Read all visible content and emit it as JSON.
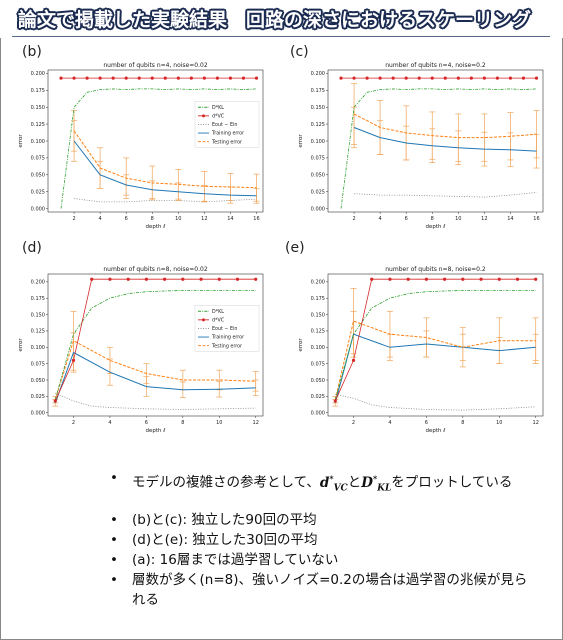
{
  "slide": {
    "title": "論文で掲載した実験結果　回路の深さにおけるスケーリング",
    "bullets": [
      {
        "pre": "モデルの複雑さの参考として、",
        "m1": "d",
        "m1sub": "VC",
        "mid": "と",
        "m2": "D",
        "m2sub": "KL",
        "post": "をプロットしている"
      },
      {
        "text": "(b)と(c): 独立した90回の平均"
      },
      {
        "text": "(d)と(e): 独立した30回の平均"
      },
      {
        "text": "(a): 16層までは過学習していない"
      },
      {
        "text": "層数が多く(n=8)、強いノイズ=0.2の場合は過学習の兆候が見られる"
      }
    ]
  },
  "colors": {
    "dvc": "#d62728",
    "dkl": "#2ca02c",
    "gap": "#888888",
    "train": "#1f77b4",
    "test": "#ff7f0e",
    "errbar": "#f0a45a"
  },
  "legend_labels": {
    "dkl": "D*KL",
    "dvc": "d*VC",
    "gap": "Eout − Ein",
    "train": "Training error",
    "test": "Testing error"
  },
  "chart_data": [
    {
      "panel": "(b)",
      "type": "line",
      "title": "number of qubits n=4, noise=0.02",
      "xlabel": "depth ℓ",
      "ylabel": "error",
      "xlim": [
        0,
        16.5
      ],
      "ylim": [
        -0.005,
        0.205
      ],
      "xticks": [
        2,
        4,
        6,
        8,
        10,
        12,
        14,
        16
      ],
      "yticks": [
        0.0,
        0.025,
        0.05,
        0.075,
        0.1,
        0.125,
        0.15,
        0.175,
        0.2
      ],
      "ytick_labels": [
        "0.000",
        "0.025",
        "0.050",
        "0.075",
        "0.100",
        "0.125",
        "0.150",
        "0.175",
        "0.200"
      ],
      "legend": "right",
      "series": {
        "dvc": {
          "x": [
            1,
            2,
            3,
            4,
            5,
            6,
            7,
            8,
            9,
            10,
            11,
            12,
            13,
            14,
            15,
            16
          ],
          "y": [
            0.193,
            0.193,
            0.193,
            0.193,
            0.193,
            0.193,
            0.193,
            0.193,
            0.193,
            0.193,
            0.193,
            0.193,
            0.193,
            0.193,
            0.193,
            0.193
          ]
        },
        "dkl": {
          "x": [
            1,
            2,
            3,
            4,
            5,
            6,
            7,
            8,
            9,
            10,
            11,
            12,
            13,
            14,
            15,
            16
          ],
          "y": [
            0.0,
            0.15,
            0.172,
            0.176,
            0.177,
            0.176,
            0.177,
            0.177,
            0.176,
            0.177,
            0.176,
            0.177,
            0.176,
            0.177,
            0.176,
            0.177
          ]
        },
        "gap": {
          "x": [
            2,
            4,
            6,
            8,
            10,
            12,
            14,
            16
          ],
          "y": [
            0.015,
            0.01,
            0.01,
            0.012,
            0.012,
            0.01,
            0.012,
            0.014
          ]
        },
        "train": {
          "x": [
            2,
            4,
            6,
            8,
            10,
            12,
            14,
            16
          ],
          "y": [
            0.1,
            0.05,
            0.035,
            0.028,
            0.025,
            0.022,
            0.02,
            0.019
          ],
          "err": [
            0.03,
            0.02,
            0.015,
            0.013,
            0.013,
            0.012,
            0.012,
            0.011
          ]
        },
        "test": {
          "x": [
            2,
            4,
            6,
            8,
            10,
            12,
            14,
            16
          ],
          "y": [
            0.115,
            0.06,
            0.045,
            0.038,
            0.036,
            0.033,
            0.032,
            0.031
          ],
          "err": [
            0.03,
            0.03,
            0.03,
            0.025,
            0.022,
            0.022,
            0.02,
            0.02
          ]
        }
      }
    },
    {
      "panel": "(c)",
      "type": "line",
      "title": "number of qubits n=4, noise=0.2",
      "xlabel": "depth ℓ",
      "ylabel": "error",
      "xlim": [
        0,
        16.5
      ],
      "ylim": [
        -0.005,
        0.205
      ],
      "xticks": [
        2,
        4,
        6,
        8,
        10,
        12,
        14,
        16
      ],
      "yticks": [
        0.0,
        0.025,
        0.05,
        0.075,
        0.1,
        0.125,
        0.15,
        0.175,
        0.2
      ],
      "ytick_labels": [
        "0.000",
        "0.025",
        "0.050",
        "0.075",
        "0.100",
        "0.125",
        "0.150",
        "0.175",
        "0.200"
      ],
      "legend": "none",
      "series": {
        "dvc": {
          "x": [
            1,
            2,
            3,
            4,
            5,
            6,
            7,
            8,
            9,
            10,
            11,
            12,
            13,
            14,
            15,
            16
          ],
          "y": [
            0.193,
            0.193,
            0.193,
            0.193,
            0.193,
            0.193,
            0.193,
            0.193,
            0.193,
            0.193,
            0.193,
            0.193,
            0.193,
            0.193,
            0.193,
            0.193
          ]
        },
        "dkl": {
          "x": [
            1,
            2,
            3,
            4,
            5,
            6,
            7,
            8,
            9,
            10,
            11,
            12,
            13,
            14,
            15,
            16
          ],
          "y": [
            0.0,
            0.15,
            0.172,
            0.176,
            0.177,
            0.176,
            0.177,
            0.177,
            0.176,
            0.177,
            0.176,
            0.177,
            0.176,
            0.177,
            0.176,
            0.177
          ]
        },
        "gap": {
          "x": [
            2,
            4,
            6,
            8,
            10,
            12,
            14,
            16
          ],
          "y": [
            0.022,
            0.02,
            0.02,
            0.019,
            0.018,
            0.017,
            0.02,
            0.024
          ]
        },
        "train": {
          "x": [
            2,
            4,
            6,
            8,
            10,
            12,
            14,
            16
          ],
          "y": [
            0.12,
            0.105,
            0.097,
            0.093,
            0.09,
            0.088,
            0.087,
            0.085
          ],
          "err": [
            0.03,
            0.025,
            0.025,
            0.025,
            0.025,
            0.025,
            0.025,
            0.025
          ]
        },
        "test": {
          "x": [
            2,
            4,
            6,
            8,
            10,
            12,
            14,
            16
          ],
          "y": [
            0.14,
            0.12,
            0.112,
            0.108,
            0.105,
            0.105,
            0.107,
            0.11
          ],
          "err": [
            0.045,
            0.04,
            0.04,
            0.035,
            0.035,
            0.035,
            0.035,
            0.035
          ]
        }
      }
    },
    {
      "panel": "(d)",
      "type": "line",
      "title": "number of qubits n=8, noise=0.02",
      "xlabel": "depth ℓ",
      "ylabel": "error",
      "xlim": [
        0.6,
        12.4
      ],
      "ylim": [
        -0.005,
        0.212
      ],
      "xticks": [
        2,
        4,
        6,
        8,
        10,
        12
      ],
      "yticks": [
        0.0,
        0.025,
        0.05,
        0.075,
        0.1,
        0.125,
        0.15,
        0.175,
        0.2
      ],
      "ytick_labels": [
        "0.000",
        "0.025",
        "0.050",
        "0.075",
        "0.100",
        "0.125",
        "0.150",
        "0.175",
        "0.200"
      ],
      "legend": "right",
      "series": {
        "dvc": {
          "x": [
            1,
            2,
            3,
            4,
            5,
            6,
            7,
            8,
            9,
            10,
            11,
            12
          ],
          "y": [
            0.018,
            0.08,
            0.204,
            0.204,
            0.204,
            0.204,
            0.204,
            0.204,
            0.204,
            0.204,
            0.204,
            0.204
          ]
        },
        "dkl": {
          "x": [
            1,
            2,
            3,
            4,
            5,
            6,
            7,
            8,
            9,
            10,
            11,
            12
          ],
          "y": [
            0.02,
            0.12,
            0.16,
            0.175,
            0.182,
            0.185,
            0.186,
            0.187,
            0.187,
            0.187,
            0.187,
            0.187
          ]
        },
        "gap": {
          "x": [
            1,
            2,
            3,
            4,
            6,
            8,
            10,
            12
          ],
          "y": [
            0.03,
            0.018,
            0.01,
            0.008,
            0.006,
            0.005,
            0.006,
            0.007
          ]
        },
        "train": {
          "x": [
            1,
            2,
            4,
            6,
            8,
            10,
            12
          ],
          "y": [
            0.015,
            0.092,
            0.062,
            0.04,
            0.035,
            0.036,
            0.038
          ],
          "err": [
            0.005,
            0.03,
            0.02,
            0.015,
            0.012,
            0.012,
            0.012
          ]
        },
        "test": {
          "x": [
            1,
            2,
            4,
            6,
            8,
            10,
            12
          ],
          "y": [
            0.02,
            0.11,
            0.08,
            0.06,
            0.05,
            0.05,
            0.048
          ],
          "err": [
            0.005,
            0.045,
            0.02,
            0.015,
            0.015,
            0.015,
            0.015
          ]
        }
      }
    },
    {
      "panel": "(e)",
      "type": "line",
      "title": "number of qubits n=8, noise=0.2",
      "xlabel": "depth ℓ",
      "ylabel": "error",
      "xlim": [
        0.6,
        12.4
      ],
      "ylim": [
        -0.005,
        0.212
      ],
      "xticks": [
        2,
        4,
        6,
        8,
        10,
        12
      ],
      "yticks": [
        0.0,
        0.025,
        0.05,
        0.075,
        0.1,
        0.125,
        0.15,
        0.175,
        0.2
      ],
      "ytick_labels": [
        "0.000",
        "0.025",
        "0.050",
        "0.075",
        "0.100",
        "0.125",
        "0.150",
        "0.175",
        "0.200"
      ],
      "legend": "none",
      "series": {
        "dvc": {
          "x": [
            1,
            2,
            3,
            4,
            5,
            6,
            7,
            8,
            9,
            10,
            11,
            12
          ],
          "y": [
            0.018,
            0.08,
            0.204,
            0.204,
            0.204,
            0.204,
            0.204,
            0.204,
            0.204,
            0.204,
            0.204,
            0.204
          ]
        },
        "dkl": {
          "x": [
            1,
            2,
            3,
            4,
            5,
            6,
            7,
            8,
            9,
            10,
            11,
            12
          ],
          "y": [
            0.02,
            0.12,
            0.16,
            0.175,
            0.182,
            0.185,
            0.186,
            0.187,
            0.187,
            0.187,
            0.187,
            0.187
          ]
        },
        "gap": {
          "x": [
            1,
            2,
            3,
            4,
            6,
            8,
            10,
            12
          ],
          "y": [
            0.028,
            0.022,
            0.012,
            0.008,
            0.005,
            0.004,
            0.006,
            0.009
          ]
        },
        "train": {
          "x": [
            1,
            2,
            4,
            6,
            8,
            10,
            12
          ],
          "y": [
            0.015,
            0.12,
            0.1,
            0.105,
            0.1,
            0.095,
            0.1
          ],
          "err": [
            0.005,
            0.035,
            0.02,
            0.02,
            0.02,
            0.02,
            0.02
          ]
        },
        "test": {
          "x": [
            1,
            2,
            4,
            6,
            8,
            10,
            12
          ],
          "y": [
            0.02,
            0.14,
            0.12,
            0.115,
            0.1,
            0.11,
            0.11
          ],
          "err": [
            0.005,
            0.05,
            0.035,
            0.03,
            0.03,
            0.035,
            0.035
          ]
        }
      }
    }
  ]
}
